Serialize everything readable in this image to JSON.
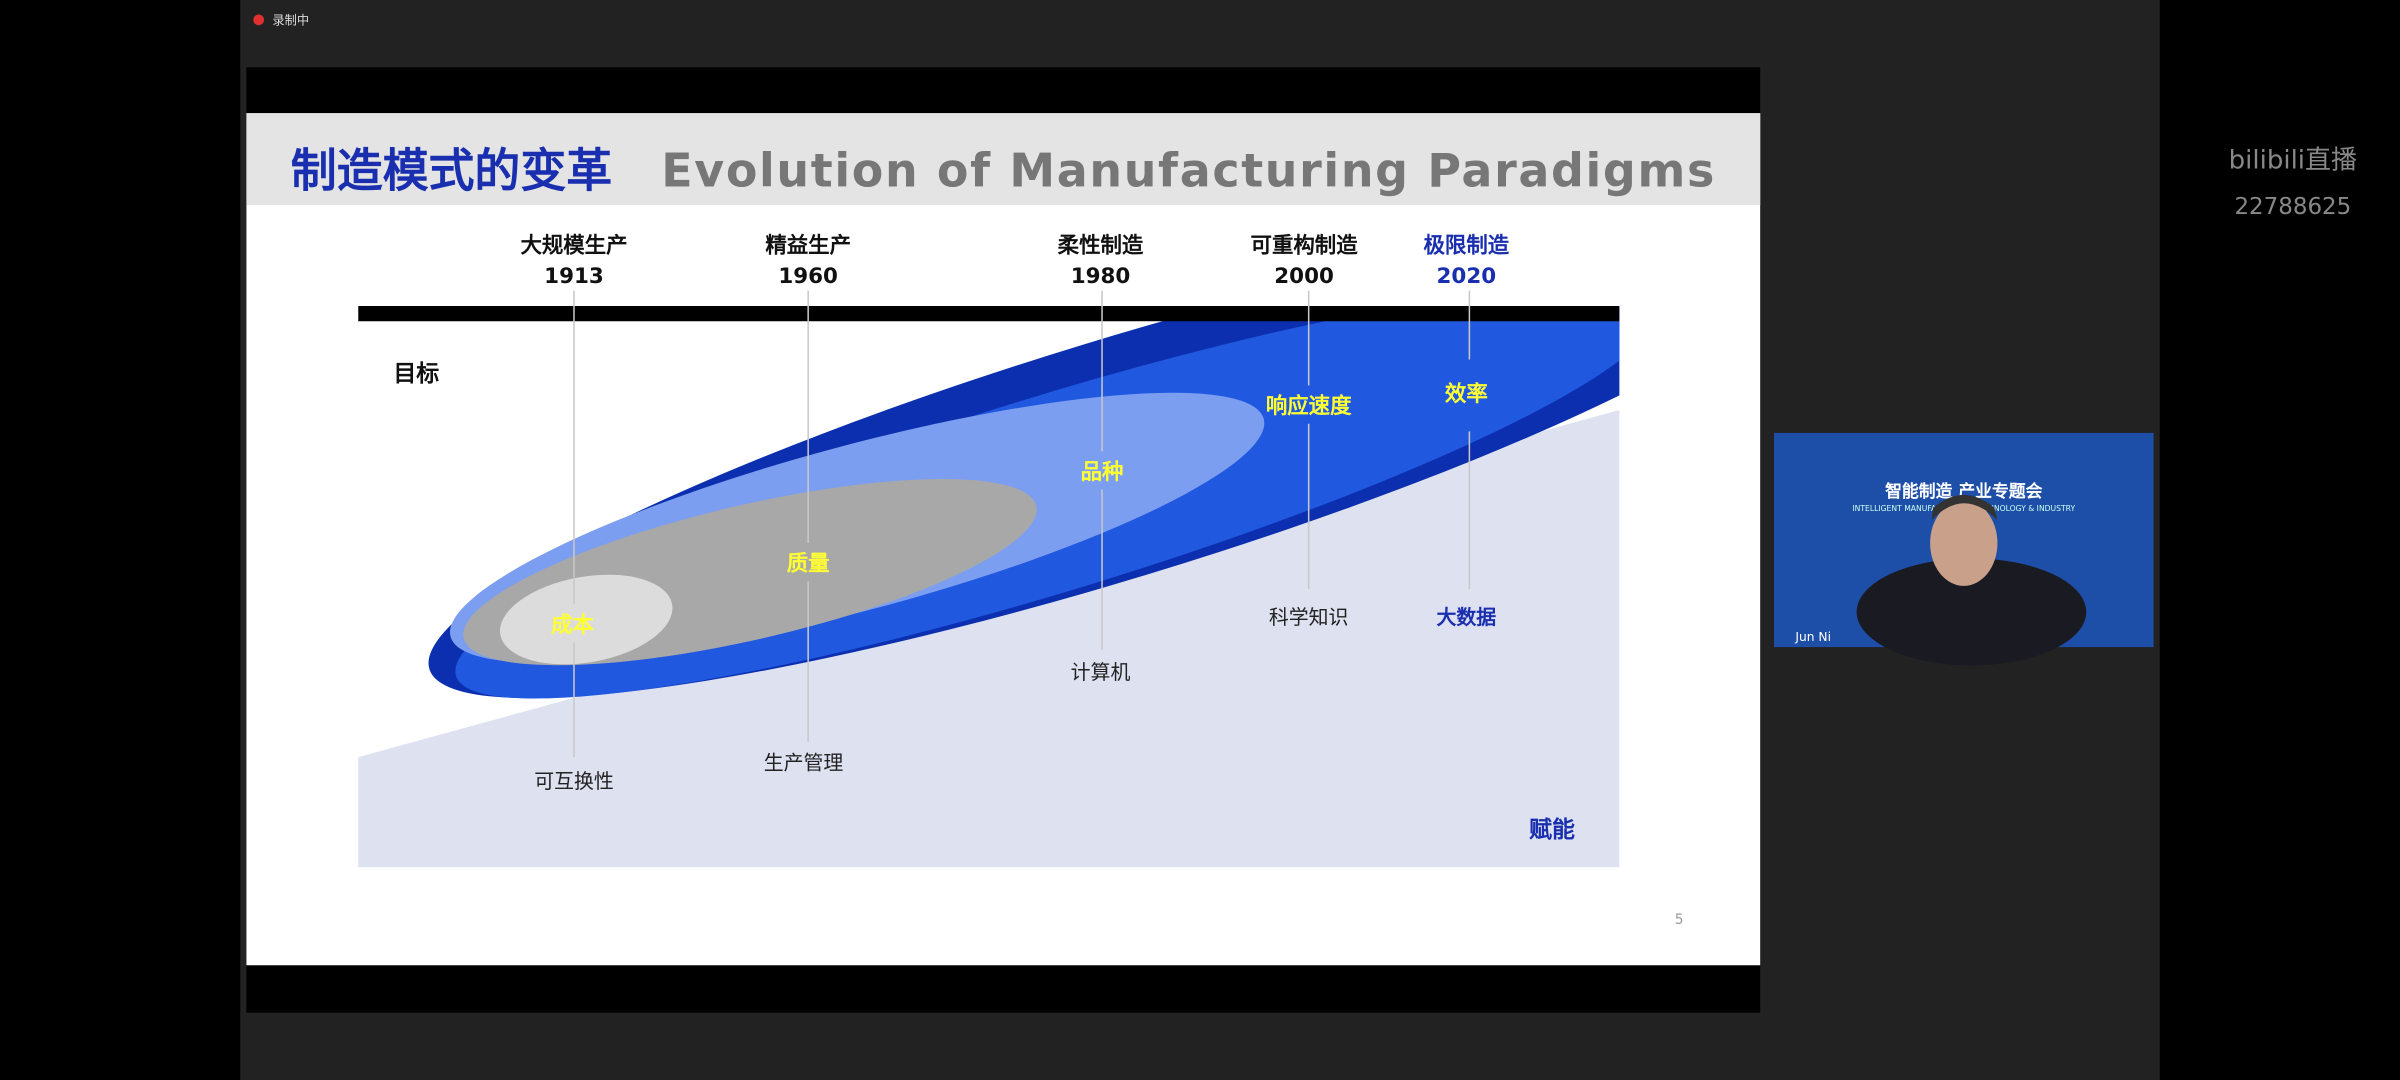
{
  "status": {
    "recording": "录制中"
  },
  "slide": {
    "title_cn": "制造模式的变革",
    "title_en": "Evolution of Manufacturing Paradigms",
    "eras": [
      {
        "name": "大规模生产",
        "year": "1913",
        "goal": "成本",
        "enabler": "可互换性"
      },
      {
        "name": "精益生产",
        "year": "1960",
        "goal": "质量",
        "enabler": "生产管理"
      },
      {
        "name": "柔性制造",
        "year": "1980",
        "goal": "品种",
        "enabler": "计算机"
      },
      {
        "name": "可重构制造",
        "year": "2000",
        "goal": "响应速度",
        "enabler": "科学知识"
      },
      {
        "name": "极限制造",
        "year": "2020",
        "goal": "效率",
        "enabler": "大数据"
      }
    ],
    "goal_axis": "目标",
    "enable_axis": "赋能",
    "page_number": "5"
  },
  "stream": {
    "platform": "bilibili直播",
    "room_id": "22788625"
  },
  "video": {
    "conference": "智能制造 产业专题会",
    "subtitle": "INTELLIGENT MANUFACTURING TECHNOLOGY & INDUSTRY",
    "speaker": "Jun Ni"
  }
}
